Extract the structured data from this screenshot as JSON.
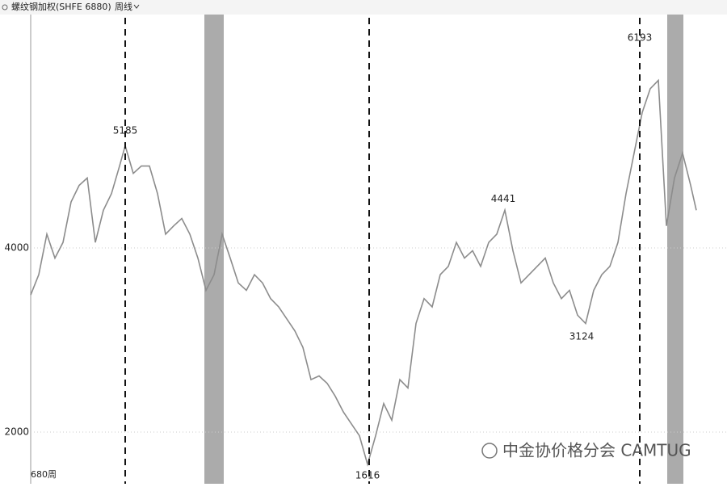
{
  "header": {
    "title": "螺纹钢加权(SHFE 6880)",
    "period": "周线",
    "footer": "680周",
    "watermark": "中金协价格分会 CAMTUG"
  },
  "chart_data": {
    "type": "line",
    "x": [
      0,
      10,
      20,
      30,
      40,
      50,
      60,
      70,
      80,
      90,
      100,
      110,
      117,
      127,
      137,
      147,
      157,
      167,
      177,
      187,
      197,
      207,
      217,
      227,
      237,
      247,
      257,
      267,
      277,
      287,
      297,
      307,
      317,
      327,
      337,
      347,
      357,
      367,
      377,
      387,
      397,
      407,
      417,
      427,
      437,
      447,
      457,
      467,
      477,
      487,
      497,
      507,
      517,
      527,
      537,
      547,
      557,
      567,
      577,
      587,
      597,
      607,
      617,
      627,
      637,
      647,
      657,
      667,
      677,
      687,
      697,
      707,
      717,
      727,
      737,
      747,
      757,
      767,
      777,
      787,
      797,
      807,
      817,
      824
    ],
    "series": [
      {
        "color": "#8c8c8c",
        "values": [
          3490,
          3710,
          4150,
          3890,
          4060,
          4500,
          4680,
          4760,
          4060,
          4410,
          4590,
          4890,
          5110,
          4810,
          4890,
          4890,
          4590,
          4150,
          4240,
          4320,
          4150,
          3890,
          3540,
          3710,
          4150,
          3890,
          3620,
          3540,
          3710,
          3620,
          3450,
          3360,
          3230,
          3100,
          2920,
          2570,
          2610,
          2530,
          2390,
          2220,
          2090,
          1960,
          1650,
          1960,
          2310,
          2130,
          2570,
          2480,
          3180,
          3450,
          3360,
          3710,
          3800,
          4060,
          3890,
          3970,
          3800,
          4060,
          4150,
          4410,
          3970,
          3620,
          3710,
          3800,
          3890,
          3620,
          3450,
          3540,
          3270,
          3180,
          3540,
          3710,
          3800,
          4060,
          4590,
          5030,
          5470,
          5730,
          5820,
          4240,
          4760,
          5030,
          4680,
          4410
        ]
      }
    ],
    "xlim": [
      0,
      862
    ],
    "ylim": [
      1439,
      6535
    ],
    "yticks": [
      2000,
      4000
    ],
    "grid": true,
    "annotations": [
      {
        "x": 117,
        "value": 5185
      },
      {
        "x": 417,
        "value": 1616
      },
      {
        "x": 585,
        "value": 4441
      },
      {
        "x": 682,
        "value": 3124
      },
      {
        "x": 754,
        "value": 6193
      }
    ],
    "vlines": [
      117,
      419,
      754
    ],
    "bands": [
      [
        215,
        239
      ],
      [
        788,
        808
      ]
    ]
  }
}
